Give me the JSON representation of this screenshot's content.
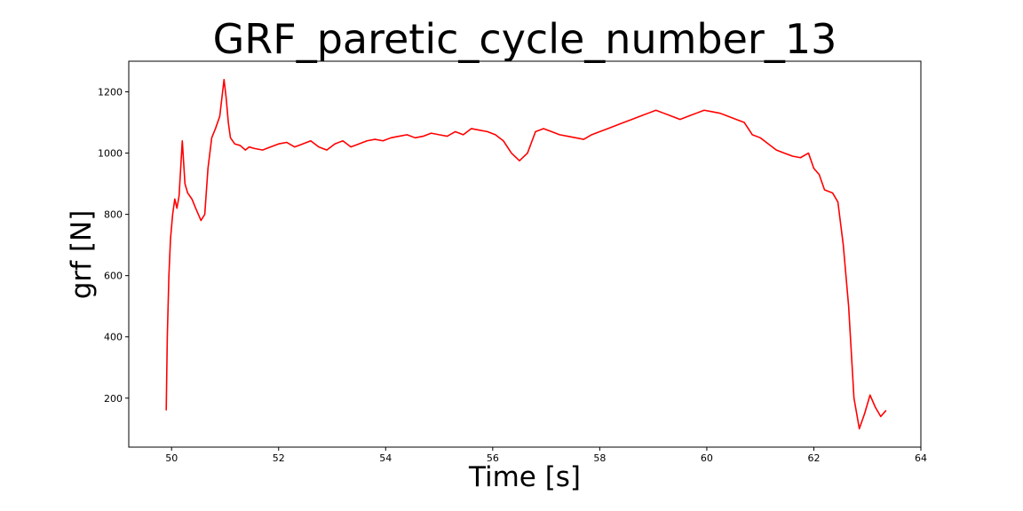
{
  "chart_data": {
    "type": "line",
    "title": "GRF_paretic_cycle_number_13",
    "xlabel": "Time [s]",
    "ylabel": "grf [N]",
    "xlim": [
      49.2,
      64.0
    ],
    "ylim": [
      40,
      1300
    ],
    "x_ticks": [
      50,
      52,
      54,
      56,
      58,
      60,
      62,
      64
    ],
    "y_ticks": [
      200,
      400,
      600,
      800,
      1000,
      1200
    ],
    "x_tick_labels": [
      "50",
      "52",
      "54",
      "56",
      "58",
      "60",
      "62",
      "64"
    ],
    "y_tick_labels": [
      "200",
      "400",
      "600",
      "800",
      "1000",
      "1200"
    ],
    "grid": false,
    "line_color": "#ff0000",
    "series": [
      {
        "x": [
          49.9,
          49.92,
          49.95,
          49.98,
          50.02,
          50.06,
          50.1,
          50.14,
          50.2,
          50.25,
          50.3,
          50.38,
          50.45,
          50.55,
          50.62,
          50.68,
          50.75,
          50.82,
          50.9,
          50.98,
          51.02,
          51.06,
          51.1,
          51.18,
          51.28,
          51.38,
          51.45,
          51.55,
          51.7,
          51.85,
          52.0,
          52.15,
          52.3,
          52.45,
          52.6,
          52.75,
          52.9,
          53.05,
          53.2,
          53.35,
          53.5,
          53.65,
          53.8,
          53.95,
          54.1,
          54.25,
          54.4,
          54.55,
          54.7,
          54.85,
          55.0,
          55.15,
          55.3,
          55.45,
          55.6,
          55.75,
          55.9,
          56.05,
          56.2,
          56.35,
          56.5,
          56.65,
          56.8,
          56.95,
          57.1,
          57.25,
          57.4,
          57.55,
          57.7,
          57.85,
          58.0,
          58.15,
          58.3,
          58.45,
          58.6,
          58.75,
          58.9,
          59.05,
          59.2,
          59.35,
          59.5,
          59.65,
          59.8,
          59.95,
          60.1,
          60.25,
          60.4,
          60.55,
          60.7,
          60.85,
          61.0,
          61.15,
          61.3,
          61.45,
          61.6,
          61.75,
          61.9,
          62.0,
          62.1,
          62.2,
          62.35,
          62.45,
          62.55,
          62.65,
          62.75,
          62.85,
          62.95,
          63.05,
          63.15,
          63.25,
          63.35
        ],
        "y": [
          160,
          400,
          600,
          720,
          800,
          850,
          820,
          860,
          1040,
          900,
          870,
          850,
          820,
          780,
          800,
          950,
          1050,
          1080,
          1120,
          1240,
          1180,
          1100,
          1050,
          1030,
          1025,
          1010,
          1020,
          1015,
          1010,
          1020,
          1030,
          1035,
          1020,
          1030,
          1040,
          1020,
          1010,
          1030,
          1040,
          1020,
          1030,
          1040,
          1045,
          1040,
          1050,
          1055,
          1060,
          1050,
          1055,
          1065,
          1060,
          1055,
          1070,
          1060,
          1080,
          1075,
          1070,
          1060,
          1040,
          1000,
          975,
          1000,
          1070,
          1080,
          1070,
          1060,
          1055,
          1050,
          1045,
          1060,
          1070,
          1080,
          1090,
          1100,
          1110,
          1120,
          1130,
          1140,
          1130,
          1120,
          1110,
          1120,
          1130,
          1140,
          1135,
          1130,
          1120,
          1110,
          1100,
          1060,
          1050,
          1030,
          1010,
          1000,
          990,
          985,
          1000,
          950,
          930,
          880,
          870,
          840,
          700,
          500,
          200,
          100,
          150,
          210,
          170,
          140,
          160
        ]
      }
    ]
  }
}
